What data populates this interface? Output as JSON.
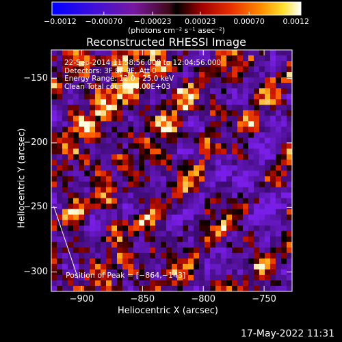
{
  "chart_data": {
    "type": "heatmap",
    "title": "Reconstructed RHESSI Image",
    "xlabel": "Heliocentric X (arcsec)",
    "ylabel": "Heliocentric Y (arcsec)",
    "xlim": [
      -925,
      -727
    ],
    "ylim": [
      -315,
      -128
    ],
    "xticks": [
      -900,
      -850,
      -800,
      -750
    ],
    "yticks": [
      -300,
      -250,
      -200,
      -150
    ],
    "xtick_labels": [
      "−900",
      "−850",
      "−800",
      "−750"
    ],
    "ytick_labels": [
      "−300",
      "−250",
      "−200",
      "−150"
    ],
    "colorbar": {
      "min": -0.0012,
      "max": 0.0012,
      "tick_values": [
        -0.0012,
        -0.0007,
        -0.00023,
        0.00023,
        0.0007,
        0.0012
      ],
      "tick_labels": [
        "−0.0012",
        "−0.00070",
        "−0.00023",
        "0.00023",
        "0.00070",
        "0.0012"
      ],
      "unit_label": "(photons cm⁻² s⁻¹ asec⁻²)"
    },
    "info_lines": [
      "22-Sep-2014 11:58:56.000 to 12:04:56.000",
      "Detectors: 3F 8F 9F, Att 0",
      "Energy Range: 12.0 - 25.0 keV",
      "Clean    Total counts: 6.00E+03"
    ],
    "peak_label": "Position of Peak = [−864,−143]",
    "peak": {
      "x": -864,
      "y": -143
    },
    "limb_line": [
      [
        -923,
        -249
      ],
      [
        -903,
        -305
      ]
    ],
    "grid": false,
    "legend": "colorbar-top"
  },
  "timestamp": "17-May-2022 11:31"
}
